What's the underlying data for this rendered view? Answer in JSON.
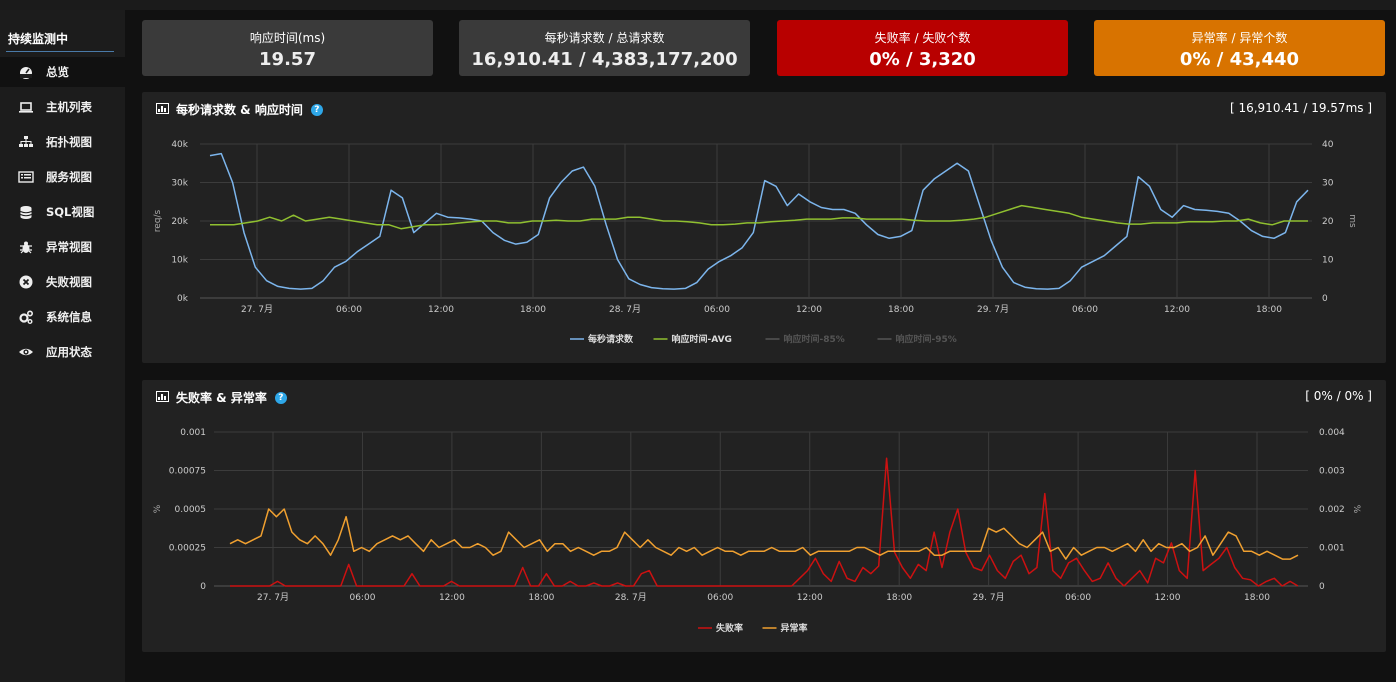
{
  "sidebar": {
    "title": "持续监测中",
    "items": [
      {
        "label": "总览",
        "icon": "dashboard-icon",
        "active": true
      },
      {
        "label": "主机列表",
        "icon": "laptop-icon"
      },
      {
        "label": "拓扑视图",
        "icon": "sitemap-icon"
      },
      {
        "label": "服务视图",
        "icon": "list-icon"
      },
      {
        "label": "SQL视图",
        "icon": "database-icon"
      },
      {
        "label": "异常视图",
        "icon": "bug-icon"
      },
      {
        "label": "失败视图",
        "icon": "x-circle-icon"
      },
      {
        "label": "系统信息",
        "icon": "cogs-icon"
      },
      {
        "label": "应用状态",
        "icon": "eye-icon"
      }
    ]
  },
  "stats": [
    {
      "label": "响应时间(ms)",
      "value": "19.57",
      "color": "#3a3a3a"
    },
    {
      "label": "每秒请求数 / 总请求数",
      "value": "16,910.41 / 4,383,177,200",
      "color": "#3a3a3a"
    },
    {
      "label": "失败率 / 失败个数",
      "value": "0% / 3,320",
      "color": "#b80000"
    },
    {
      "label": "异常率 / 异常个数",
      "value": "0% / 43,440",
      "color": "#d87300"
    }
  ],
  "panel1": {
    "title": "每秒请求数 & 响应时间",
    "summary": "[ 16,910.41 / 19.57ms ]"
  },
  "panel2": {
    "title": "失败率 & 异常率",
    "summary": "[ 0% / 0% ]"
  },
  "chart_data": [
    {
      "type": "line",
      "x_tick_labels": [
        "27. 7月",
        "06:00",
        "12:00",
        "18:00",
        "28. 7月",
        "06:00",
        "12:00",
        "18:00",
        "29. 7月",
        "06:00",
        "12:00",
        "18:00"
      ],
      "y_left": {
        "label": "req/s",
        "ticks": [
          "0k",
          "10k",
          "20k",
          "30k",
          "40k"
        ],
        "range": [
          0,
          40000
        ]
      },
      "y_right": {
        "label": "ms",
        "ticks": [
          "0",
          "10",
          "20",
          "30",
          "40"
        ],
        "range": [
          0,
          40
        ]
      },
      "grid": true,
      "legend_position": "bottom",
      "series": [
        {
          "name": "每秒请求数",
          "axis": "left",
          "color": "#7cb5ec",
          "visible": true,
          "values": [
            37000,
            37500,
            30000,
            17000,
            8000,
            4500,
            3000,
            2500,
            2300,
            2500,
            4500,
            8000,
            9500,
            12000,
            14000,
            16000,
            28000,
            26000,
            17000,
            19500,
            22000,
            21000,
            20800,
            20500,
            20000,
            17000,
            15000,
            14000,
            14500,
            16500,
            26000,
            30000,
            33000,
            34000,
            29000,
            19000,
            10000,
            5000,
            3500,
            2700,
            2400,
            2300,
            2500,
            4000,
            7500,
            9500,
            11000,
            13000,
            17000,
            30500,
            29000,
            24000,
            27000,
            25000,
            23500,
            23000,
            23000,
            22000,
            19000,
            16500,
            15500,
            16000,
            17500,
            28000,
            31000,
            33000,
            35000,
            33000,
            24000,
            15000,
            8000,
            4000,
            2800,
            2400,
            2300,
            2500,
            4500,
            8000,
            9500,
            11000,
            13500,
            16000,
            31500,
            29000,
            23000,
            21000,
            24000,
            23000,
            22800,
            22500,
            22000,
            20000,
            17500,
            16000,
            15500,
            17000,
            25000,
            28000
          ]
        },
        {
          "name": "响应时间-AVG",
          "axis": "right",
          "color": "#90c030",
          "visible": true,
          "values": [
            19,
            19,
            19,
            19.5,
            20,
            21,
            20,
            21.5,
            20,
            20.5,
            21,
            20.5,
            20,
            19.5,
            19,
            19,
            18,
            18.5,
            19,
            19,
            19.2,
            19.5,
            19.8,
            20,
            20,
            19.5,
            19.5,
            20,
            20,
            20.2,
            20,
            20,
            20.5,
            20.5,
            20.5,
            21,
            21,
            20.5,
            20,
            20,
            19.8,
            19.5,
            19,
            19,
            19.2,
            19.5,
            19.5,
            19.8,
            20,
            20.2,
            20.5,
            20.5,
            20.5,
            20.8,
            20.8,
            20.5,
            20.5,
            20.5,
            20.5,
            20.2,
            20,
            20,
            20,
            20.2,
            20.5,
            21,
            22,
            23,
            24,
            23.5,
            23,
            22.5,
            22,
            21,
            20.5,
            20,
            19.5,
            19.2,
            19.2,
            19.5,
            19.5,
            19.5,
            19.8,
            19.8,
            19.8,
            20,
            20,
            20.5,
            19.5,
            19,
            20,
            20,
            20
          ]
        },
        {
          "name": "响应时间-85%",
          "axis": "right",
          "color": "#666666",
          "visible": false,
          "values": []
        },
        {
          "name": "响应时间-95%",
          "axis": "right",
          "color": "#666666",
          "visible": false,
          "values": []
        }
      ]
    },
    {
      "type": "line",
      "x_tick_labels": [
        "27. 7月",
        "06:00",
        "12:00",
        "18:00",
        "28. 7月",
        "06:00",
        "12:00",
        "18:00",
        "29. 7月",
        "06:00",
        "12:00",
        "18:00"
      ],
      "y_left": {
        "label": "%",
        "ticks": [
          "0",
          "0.00025",
          "0.0005",
          "0.00075",
          "0.001"
        ],
        "range": [
          0,
          0.001
        ]
      },
      "y_right": {
        "label": "%",
        "ticks": [
          "0",
          "0.001",
          "0.002",
          "0.003",
          "0.004"
        ],
        "range": [
          0,
          0.004
        ]
      },
      "grid": true,
      "legend_position": "bottom",
      "series": [
        {
          "name": "失败率",
          "axis": "left",
          "color": "#cc1111",
          "visible": true,
          "values": [
            0,
            0,
            0,
            0,
            0,
            0,
            3e-05,
            0,
            0,
            0,
            0,
            0,
            0,
            0,
            0,
            0.00014,
            0,
            0,
            0,
            0,
            0,
            0,
            0,
            8e-05,
            0,
            0,
            0,
            0,
            3e-05,
            0,
            0,
            0,
            0,
            0,
            0,
            0,
            0,
            0.00012,
            0,
            0,
            8e-05,
            0,
            0,
            3e-05,
            0,
            0,
            2e-05,
            0,
            0,
            2e-05,
            0,
            0,
            8e-05,
            0.0001,
            0,
            0,
            0,
            0,
            0,
            0,
            0,
            0,
            0,
            0,
            0,
            0,
            0,
            0,
            0,
            0,
            0,
            0,
            5e-05,
            0.0001,
            0.00018,
            8e-05,
            3e-05,
            0.00016,
            5e-05,
            3e-05,
            0.00012,
            8e-05,
            0.00013,
            0.00083,
            0.00022,
            0.00012,
            5e-05,
            0.00014,
            0.0001,
            0.00035,
            0.00012,
            0.00035,
            0.0005,
            0.00022,
            0.00012,
            0.0001,
            0.0002,
            0.0001,
            5e-05,
            0.00016,
            0.0002,
            8e-05,
            0.00012,
            0.0006,
            0.0001,
            5e-05,
            0.00015,
            0.00018,
            0.0001,
            3e-05,
            5e-05,
            0.00015,
            5e-05,
            0,
            5e-05,
            0.0001,
            2e-05,
            0.00018,
            0.00015,
            0.00028,
            0.0001,
            5e-05,
            0.00075,
            0.0001,
            0.00014,
            0.00018,
            0.00025,
            0.00012,
            5e-05,
            4e-05,
            0,
            3e-05,
            5e-05,
            0,
            3e-05,
            0
          ]
        },
        {
          "name": "异常率",
          "axis": "right",
          "color": "#f0a030",
          "visible": true,
          "values": [
            0.0011,
            0.0012,
            0.0011,
            0.0012,
            0.0013,
            0.002,
            0.0018,
            0.002,
            0.0014,
            0.0012,
            0.0011,
            0.0013,
            0.0011,
            0.0008,
            0.0012,
            0.0018,
            0.0009,
            0.001,
            0.0009,
            0.0011,
            0.0012,
            0.0013,
            0.0012,
            0.0013,
            0.0011,
            0.0009,
            0.0012,
            0.001,
            0.0011,
            0.0012,
            0.001,
            0.001,
            0.0011,
            0.001,
            0.0008,
            0.0009,
            0.0014,
            0.0012,
            0.001,
            0.0011,
            0.0012,
            0.0009,
            0.0011,
            0.0011,
            0.0009,
            0.001,
            0.0009,
            0.0008,
            0.0009,
            0.0009,
            0.001,
            0.0014,
            0.0012,
            0.001,
            0.0012,
            0.001,
            0.0009,
            0.0008,
            0.001,
            0.0009,
            0.001,
            0.0008,
            0.0009,
            0.001,
            0.0009,
            0.0009,
            0.0008,
            0.0009,
            0.0009,
            0.0009,
            0.001,
            0.0009,
            0.0009,
            0.0009,
            0.001,
            0.0008,
            0.0009,
            0.0009,
            0.0009,
            0.0009,
            0.0009,
            0.001,
            0.001,
            0.0009,
            0.0008,
            0.0009,
            0.0009,
            0.0009,
            0.0009,
            0.0009,
            0.001,
            0.0008,
            0.0008,
            0.0009,
            0.0009,
            0.0009,
            0.0009,
            0.0009,
            0.0015,
            0.0014,
            0.0015,
            0.0013,
            0.0011,
            0.001,
            0.0012,
            0.0014,
            0.0009,
            0.001,
            0.0007,
            0.001,
            0.0008,
            0.0009,
            0.001,
            0.001,
            0.0009,
            0.001,
            0.0011,
            0.0009,
            0.0012,
            0.0009,
            0.0011,
            0.001,
            0.001,
            0.0011,
            0.0009,
            0.001,
            0.0013,
            0.0008,
            0.0011,
            0.0014,
            0.0013,
            0.0009,
            0.0009,
            0.0008,
            0.0009,
            0.0008,
            0.0007,
            0.0007,
            0.0008
          ]
        }
      ]
    }
  ]
}
